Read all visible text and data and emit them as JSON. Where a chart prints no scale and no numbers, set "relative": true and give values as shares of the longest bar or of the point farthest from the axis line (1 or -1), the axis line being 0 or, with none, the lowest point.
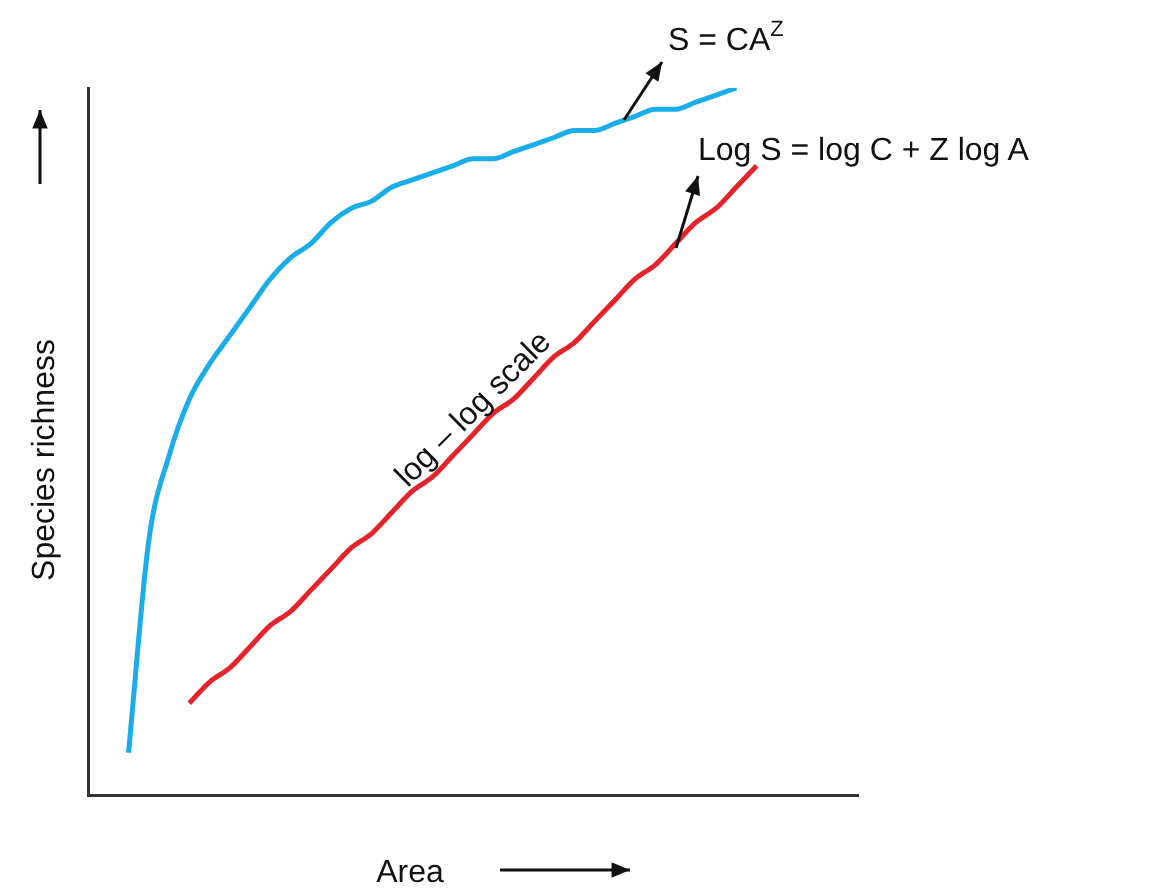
{
  "chart_data": {
    "type": "line",
    "relative": true,
    "xlabel": "Area",
    "ylabel": "Species richness",
    "categories": [
      null,
      null,
      null,
      null,
      null,
      null,
      null,
      null,
      null,
      null,
      null,
      null,
      null,
      null,
      null,
      null,
      null,
      null,
      null,
      null,
      null,
      null,
      null,
      null,
      null,
      null,
      null,
      null,
      null,
      null,
      null,
      null,
      null,
      null,
      null,
      null,
      null,
      null,
      null
    ],
    "series": [
      {
        "color": "#1aade9",
        "values": [
          null,
          null,
          0.06,
          0.36,
          0.48,
          0.56,
          0.61,
          0.65,
          0.69,
          0.73,
          0.76,
          0.78,
          0.81,
          0.83,
          0.84,
          0.86,
          0.87,
          0.88,
          0.89,
          0.9,
          0.9,
          0.91,
          0.92,
          0.93,
          0.94,
          0.94,
          0.95,
          0.96,
          0.97,
          0.97,
          0.98,
          0.99,
          1,
          null,
          null,
          null,
          null,
          null,
          null
        ]
      },
      {
        "color": "#e5232b",
        "values": [
          null,
          null,
          null,
          null,
          null,
          0.13,
          0.16,
          0.18,
          0.21,
          0.24,
          0.26,
          0.29,
          0.32,
          0.35,
          0.37,
          0.4,
          0.43,
          0.45,
          0.48,
          0.51,
          0.54,
          0.56,
          0.59,
          0.62,
          0.64,
          0.67,
          0.7,
          0.73,
          0.75,
          0.78,
          0.81,
          0.83,
          0.86,
          0.89,
          null,
          null,
          null,
          null,
          null
        ]
      }
    ],
    "annotations": [
      "S = CA$^{Z}$",
      "Log S = log C + Z log A",
      "log – log scale"
    ],
    "grid": false,
    "legend": false,
    "marker": "none",
    "line_style": "solid"
  }
}
